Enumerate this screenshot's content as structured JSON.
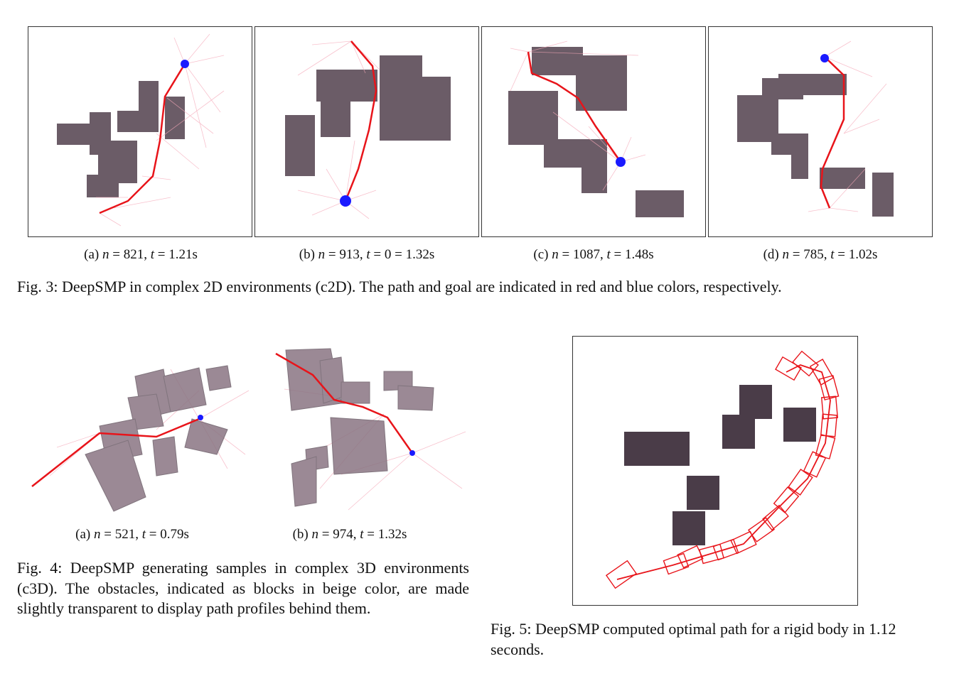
{
  "fig3": {
    "subcaptions": [
      {
        "label": "(a)",
        "n": "821",
        "t": "1.21s"
      },
      {
        "label": "(b)",
        "n": "913",
        "t": "0 = 1.32s"
      },
      {
        "label": "(c)",
        "n": "1087",
        "t": "1.48s"
      },
      {
        "label": "(d)",
        "n": "785",
        "t": "1.02s"
      }
    ],
    "caption": "Fig. 3: DeepSMP in complex 2D environments (c2D). The path and goal are indicated in red and blue colors, respectively."
  },
  "fig4": {
    "subcaptions": [
      {
        "label": "(a)",
        "n": "521",
        "t": "0.79s"
      },
      {
        "label": "(b)",
        "n": "974",
        "t": "1.32s"
      }
    ],
    "caption": "Fig. 4: DeepSMP generating samples in complex 3D environments (c3D). The obstacles, indicated as blocks in beige color, are made slightly transparent to display path profiles behind them."
  },
  "fig5": {
    "caption": "Fig. 5: DeepSMP computed optimal path for a rigid body in 1.12 seconds."
  },
  "colors": {
    "obstacle2d": "#6b5c67",
    "obstacle3d": "#8a7583",
    "path": "#e8141a",
    "goal": "#1a1aff",
    "samples": "#f5a8b8",
    "sampleDots": "#9d9dff",
    "rigidObstacle": "#4a3c48"
  }
}
